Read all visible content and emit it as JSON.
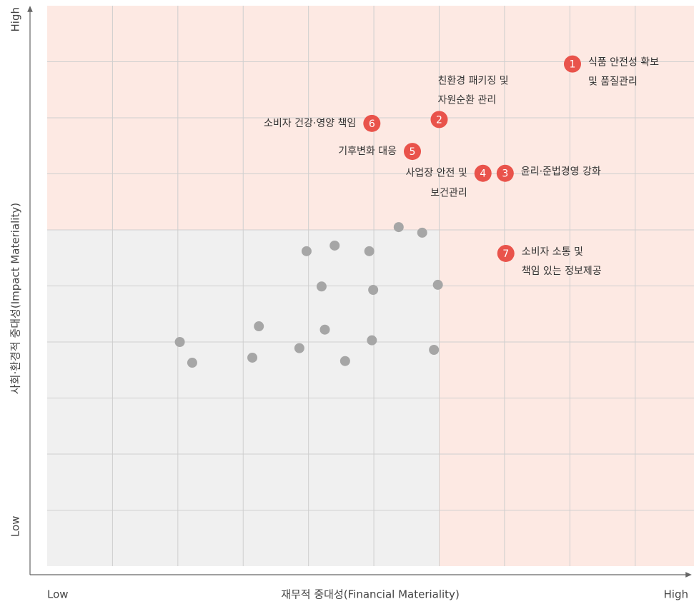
{
  "chart_data": {
    "type": "scatter",
    "x_label": "재무적 중대성(Financial Materiality)",
    "y_label": "사회·환경적 중대성(Impact Materiality)",
    "x_low": "Low",
    "x_high": "High",
    "y_low": "Low",
    "y_high": "High",
    "xlim": [
      0,
      9.9
    ],
    "ylim": [
      0,
      10
    ],
    "xticks": [
      1,
      2,
      3,
      4,
      5,
      6,
      7,
      8,
      9
    ],
    "yticks": [
      1,
      2,
      3,
      4,
      5,
      6,
      7,
      8,
      9
    ],
    "grid": true,
    "threshold_x": 6,
    "threshold_y": 6,
    "zone_colors": {
      "low": "#f0f0f0",
      "high": "#fde9e3"
    },
    "series": [
      {
        "color": "#a6a6a6",
        "x": [
          5.38,
          5.74,
          3.97,
          4.4,
          4.93,
          4.2,
          4.99,
          5.98,
          3.24,
          4.25,
          2.03,
          2.22,
          3.14,
          3.86,
          4.56,
          4.97,
          5.92
        ],
        "y": [
          6.05,
          5.95,
          5.62,
          5.72,
          5.62,
          4.99,
          4.93,
          5.02,
          4.28,
          4.22,
          4.0,
          3.63,
          3.72,
          3.89,
          3.66,
          4.03,
          3.86
        ]
      },
      {
        "color": "#e9534b",
        "x": [
          8.04,
          6.0,
          7.01,
          6.67,
          5.59,
          4.97,
          7.02
        ],
        "y": [
          8.96,
          7.97,
          7.01,
          7.01,
          7.4,
          7.9,
          5.58
        ],
        "labels": [
          "1",
          "2",
          "3",
          "4",
          "5",
          "6",
          "7"
        ],
        "captions": [
          [
            "식품 안전성 확보",
            "및 품질관리"
          ],
          [
            "친환경 패키징 및",
            "자원순환 관리"
          ],
          [
            "윤리·준법경영 강화"
          ],
          [
            "사업장 안전 및",
            "보건관리"
          ],
          [
            "기후변화 대응"
          ],
          [
            "소비자 건강·영양 책임"
          ],
          [
            "소비자 소통 및",
            "책임 있는 정보제공"
          ]
        ],
        "label_pos": [
          "right",
          "above",
          "right",
          "left",
          "left",
          "left",
          "right"
        ]
      }
    ]
  }
}
